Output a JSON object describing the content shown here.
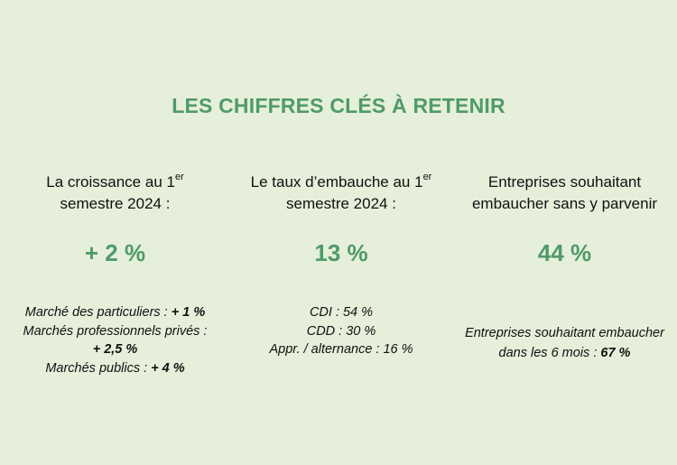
{
  "title": "LES CHIFFRES CLÉS À RETENIR",
  "colors": {
    "accent": "#4f9a6a",
    "background": "#e5efda"
  },
  "columns": [
    {
      "heading_line1": "La croissance au 1",
      "heading_sup": "er",
      "heading_line2": "semestre 2024 :",
      "value": "+ 2 %",
      "details": [
        {
          "label": "Marché des particuliers : ",
          "value": "+ 1 %"
        },
        {
          "label": "Marchés professionnels privés :",
          "value": ""
        },
        {
          "label": "",
          "value": "+ 2,5 %"
        },
        {
          "label": "Marchés publics : ",
          "value": "+ 4 %"
        }
      ]
    },
    {
      "heading_line1": "Le taux d’embauche au 1",
      "heading_sup": "er",
      "heading_line2": "semestre 2024 :",
      "value": "13 %",
      "details": [
        {
          "label": "CDI : 54 %"
        },
        {
          "label": "CDD : 30 %"
        },
        {
          "label": "Appr. / alternance : 16 %"
        }
      ]
    },
    {
      "heading_line1": "Entreprises souhaitant",
      "heading_line2": "embaucher sans y parvenir",
      "value": "44 %",
      "details": [
        {
          "label": "Entreprises souhaitant embaucher",
          "value": ""
        },
        {
          "label": "dans les 6 mois : ",
          "value": "67 %"
        }
      ]
    }
  ]
}
